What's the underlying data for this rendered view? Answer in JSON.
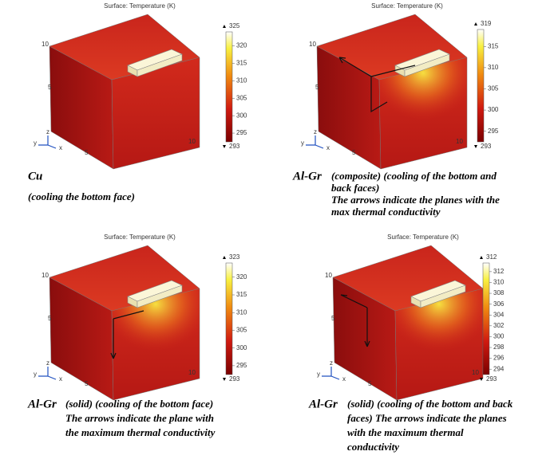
{
  "panels": [
    {
      "title": "Surface: Temperature (K)",
      "colorbar": {
        "max": "325",
        "ticks": [
          "320",
          "315",
          "310",
          "305",
          "300",
          "295"
        ],
        "min": "293"
      },
      "axis_labels": [
        "10",
        "5",
        "5",
        "10"
      ],
      "triad": [
        "z",
        "y",
        "x"
      ],
      "caption": {
        "lead": "Cu",
        "lines": [
          "",
          "(cooling the bottom face)"
        ]
      }
    },
    {
      "title": "Surface: Temperature (K)",
      "colorbar": {
        "max": "319",
        "ticks": [
          "315",
          "310",
          "305",
          "300",
          "295"
        ],
        "min": "293"
      },
      "axis_labels": [
        "10",
        "5",
        "5",
        "10"
      ],
      "triad": [
        "z",
        "y",
        "x"
      ],
      "caption": {
        "lead": "Al-Gr",
        "lines": [
          "(composite) (cooling of the  bottom and",
          "back faces)",
          "The arrows indicate the planes with the",
          "max thermal conductivity"
        ]
      }
    },
    {
      "title": "Surface: Temperature (K)",
      "colorbar": {
        "max": "323",
        "ticks": [
          "320",
          "315",
          "310",
          "305",
          "300",
          "295"
        ],
        "min": "293"
      },
      "axis_labels": [
        "10",
        "5",
        "5",
        "10"
      ],
      "triad": [
        "z",
        "y",
        "x"
      ],
      "caption": {
        "lead": "Al-Gr",
        "lines": [
          "(solid) (cooling of the bottom face)",
          "The arrows indicate the plane with",
          "the maximum thermal conductivity"
        ]
      }
    },
    {
      "title": "Surface: Temperature (K)",
      "colorbar": {
        "max": "312",
        "ticks": [
          "312",
          "310",
          "308",
          "306",
          "304",
          "302",
          "300",
          "298",
          "296",
          "294"
        ],
        "min": "293"
      },
      "axis_labels": [
        "10",
        "5",
        "5",
        "10"
      ],
      "triad": [
        "z",
        "y",
        "x"
      ],
      "caption": {
        "lead": "Al-Gr",
        "lines": [
          "(solid) (cooling of the  bottom and back",
          "faces) The arrows indicate the planes",
          "with the maximum thermal",
          "conductivity"
        ]
      }
    }
  ]
}
